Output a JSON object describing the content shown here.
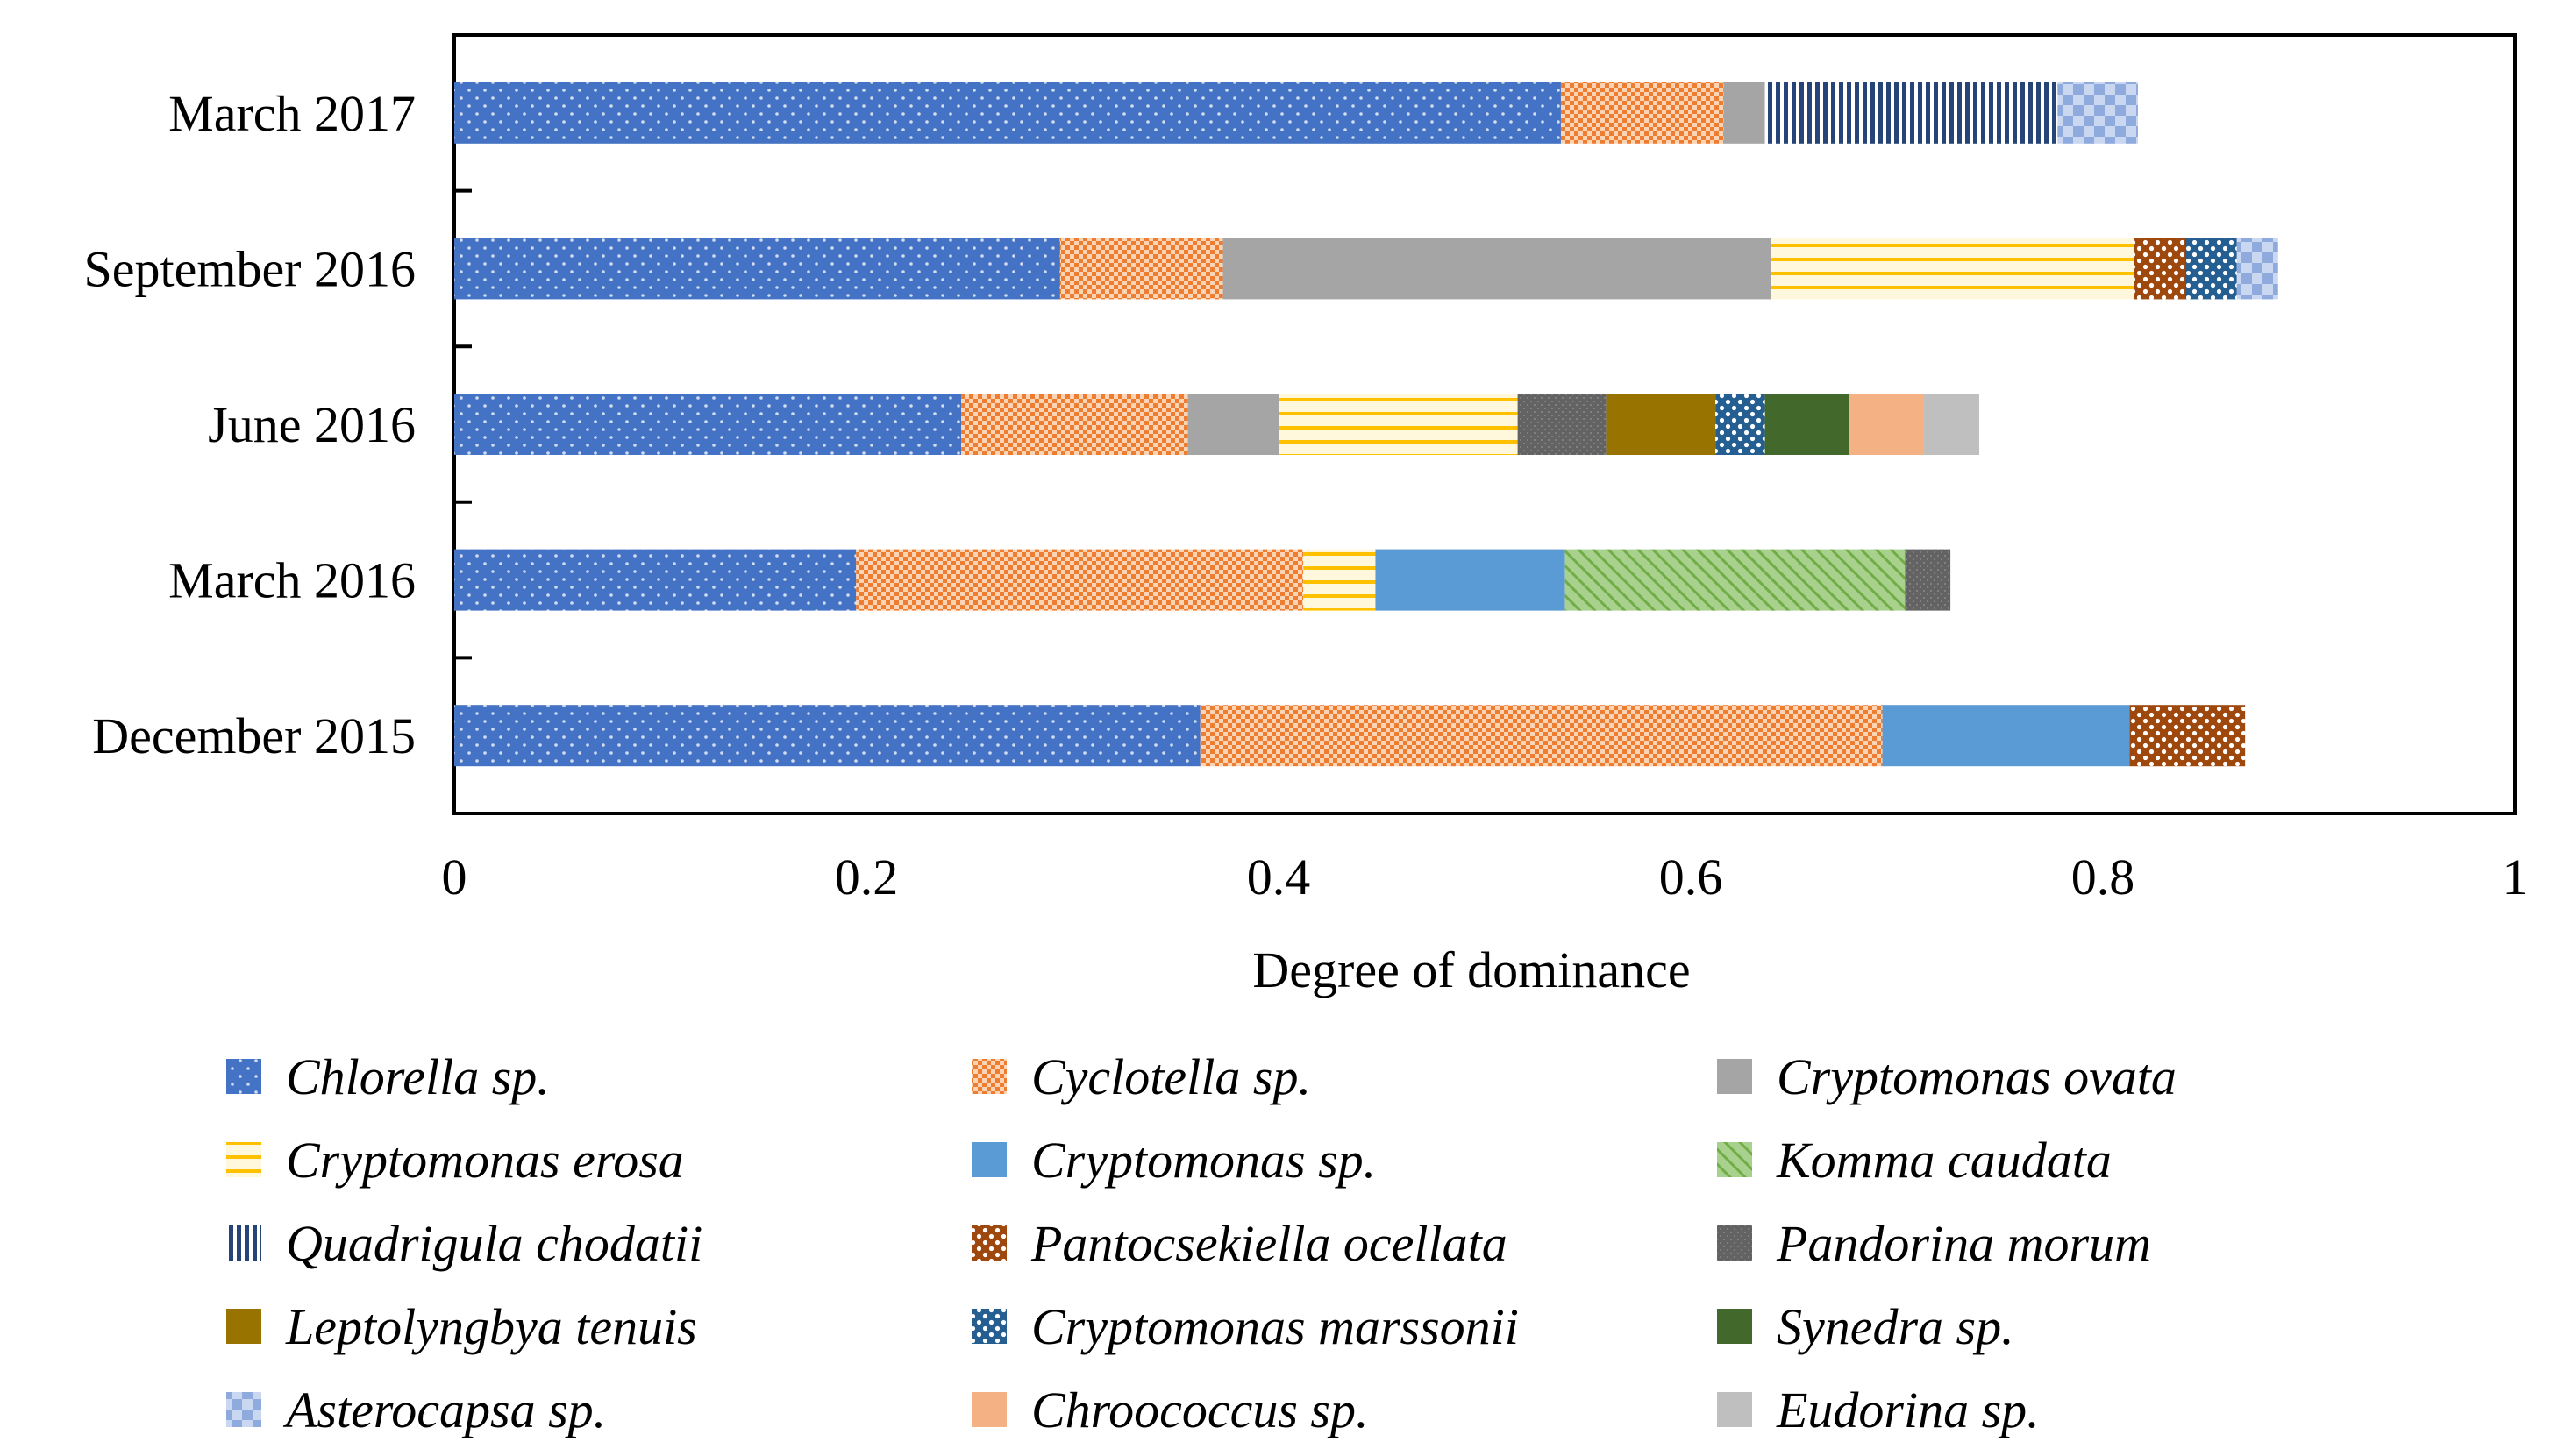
{
  "chart_data": {
    "type": "bar",
    "orientation": "horizontal",
    "stacked": true,
    "xlabel": "Degree of dominance",
    "xlim": [
      0,
      1
    ],
    "xticks": [
      0,
      0.2,
      0.4,
      0.6,
      0.8,
      1
    ],
    "xtick_labels": [
      "0",
      "0.2",
      "0.4",
      "0.6",
      "0.8",
      "1"
    ],
    "categories": [
      "March 2017",
      "September 2016",
      "June 2016",
      "March 2016",
      "December 2015"
    ],
    "legend_position": "bottom",
    "series": [
      {
        "name": "Chlorella sp.",
        "color": "#4472C4",
        "pattern": "dots",
        "values": [
          0.537,
          0.294,
          0.246,
          0.195,
          0.362
        ]
      },
      {
        "name": "Cyclotella sp.",
        "color": "#ED7D31",
        "pattern": "checker",
        "values": [
          0.079,
          0.079,
          0.11,
          0.217,
          0.331
        ]
      },
      {
        "name": "Cryptomonas ovata",
        "color": "#A5A5A5",
        "pattern": "solid",
        "values": [
          0.02,
          0.266,
          0.044,
          0,
          0
        ]
      },
      {
        "name": "Cryptomonas erosa",
        "color": "#FFC000",
        "pattern": "hlines",
        "values": [
          0,
          0.176,
          0.116,
          0.035,
          0
        ]
      },
      {
        "name": "Cryptomonas sp.",
        "color": "#5B9BD5",
        "pattern": "solid",
        "values": [
          0,
          0,
          0,
          0.092,
          0.12
        ]
      },
      {
        "name": "Komma caudata",
        "color": "#70AD47",
        "pattern": "diag",
        "values": [
          0,
          0,
          0,
          0.165,
          0
        ]
      },
      {
        "name": "Quadrigula chodatii",
        "color": "#264478",
        "pattern": "vlines",
        "values": [
          0.142,
          0,
          0,
          0,
          0
        ]
      },
      {
        "name": "Pantocsekiella ocellata",
        "color": "#9E480E",
        "pattern": "bigdots",
        "values": [
          0,
          0.025,
          0,
          0,
          0.056
        ]
      },
      {
        "name": "Pandorina morum",
        "color": "#636363",
        "pattern": "finedots",
        "values": [
          0,
          0,
          0.043,
          0.022,
          0
        ]
      },
      {
        "name": "Leptolyngbya tenuis",
        "color": "#997300",
        "pattern": "solid",
        "values": [
          0,
          0,
          0.053,
          0,
          0
        ]
      },
      {
        "name": "Cryptomonas marssonii",
        "color": "#255E91",
        "pattern": "bigdots",
        "values": [
          0,
          0.025,
          0.024,
          0,
          0
        ]
      },
      {
        "name": "Synedra sp.",
        "color": "#43682B",
        "pattern": "solid",
        "values": [
          0,
          0,
          0.041,
          0,
          0
        ]
      },
      {
        "name": "Asterocapsa sp.",
        "color": "#8FAADC",
        "pattern": "largecheck",
        "values": [
          0.039,
          0.02,
          0,
          0,
          0
        ]
      },
      {
        "name": "Chroococcus sp.",
        "color": "#F4B183",
        "pattern": "solid",
        "values": [
          0,
          0,
          0.036,
          0,
          0
        ]
      },
      {
        "name": "Eudorina sp.",
        "color": "#BFBFBF",
        "pattern": "solid",
        "values": [
          0,
          0,
          0.027,
          0,
          0
        ]
      }
    ]
  }
}
